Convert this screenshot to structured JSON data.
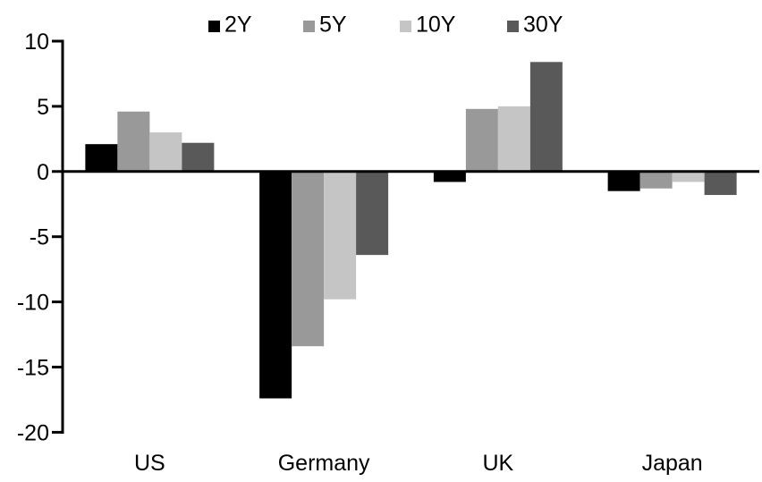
{
  "chart_data": {
    "type": "bar",
    "title": "",
    "xlabel": "",
    "ylabel": "",
    "categories": [
      "US",
      "Germany",
      "UK",
      "Japan"
    ],
    "series": [
      {
        "name": "2Y",
        "color": "#000000",
        "values": [
          2.1,
          -17.4,
          -0.8,
          -1.5
        ]
      },
      {
        "name": "5Y",
        "color": "#999999",
        "values": [
          4.6,
          -13.4,
          4.8,
          -1.3
        ]
      },
      {
        "name": "10Y",
        "color": "#c5c5c5",
        "values": [
          3.0,
          -9.8,
          5.0,
          -0.8
        ]
      },
      {
        "name": "30Y",
        "color": "#595959",
        "values": [
          2.2,
          -6.4,
          8.4,
          -1.8
        ]
      }
    ],
    "ylim": [
      -20,
      10
    ],
    "yticks": [
      10,
      5,
      0,
      -5,
      -10,
      -15,
      -20
    ],
    "grid": false,
    "legend_position": "top",
    "axis_color": "#000000",
    "background_color": "#ffffff",
    "text_color": "#000000"
  }
}
